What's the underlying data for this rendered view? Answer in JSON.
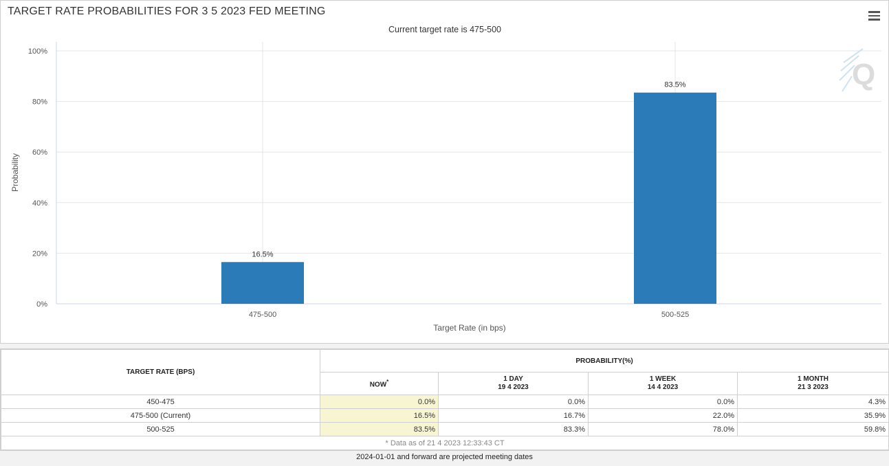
{
  "title": "TARGET RATE PROBABILITIES FOR 3 5 2023 FED MEETING",
  "chart_data": {
    "type": "bar",
    "subtitle": "Current target rate is 475-500",
    "categories": [
      "475-500",
      "500-525"
    ],
    "values": [
      16.5,
      83.5
    ],
    "value_labels": [
      "16.5%",
      "83.5%"
    ],
    "xlabel": "Target Rate (in bps)",
    "ylabel": "Probability",
    "ylim": [
      0,
      100
    ],
    "yticks": [
      0,
      20,
      40,
      60,
      80,
      100
    ],
    "ytick_labels": [
      "0%",
      "20%",
      "40%",
      "60%",
      "80%",
      "100%"
    ],
    "grid": true,
    "bar_color": "#2b7bb9"
  },
  "watermark": {
    "icon": "q-logo-icon",
    "letter": "Q"
  },
  "table": {
    "rate_header": "TARGET RATE (BPS)",
    "probability_header": "PROBABILITY(%)",
    "columns": [
      {
        "label": "NOW",
        "sup": "*",
        "date": ""
      },
      {
        "label": "1 DAY",
        "date": "19 4 2023"
      },
      {
        "label": "1 WEEK",
        "date": "14 4 2023"
      },
      {
        "label": "1 MONTH",
        "date": "21 3 2023"
      }
    ],
    "rows": [
      {
        "rate": "450-475",
        "now": "0.0%",
        "day": "0.0%",
        "week": "0.0%",
        "month": "4.3%"
      },
      {
        "rate": "475-500 (Current)",
        "now": "16.5%",
        "day": "16.7%",
        "week": "22.0%",
        "month": "35.9%"
      },
      {
        "rate": "500-525",
        "now": "83.5%",
        "day": "83.3%",
        "week": "78.0%",
        "month": "59.8%"
      }
    ],
    "footnote": "* Data as of 21 4 2023 12:33:43 CT"
  },
  "bottom_note": "2024-01-01 and forward are projected meeting dates"
}
